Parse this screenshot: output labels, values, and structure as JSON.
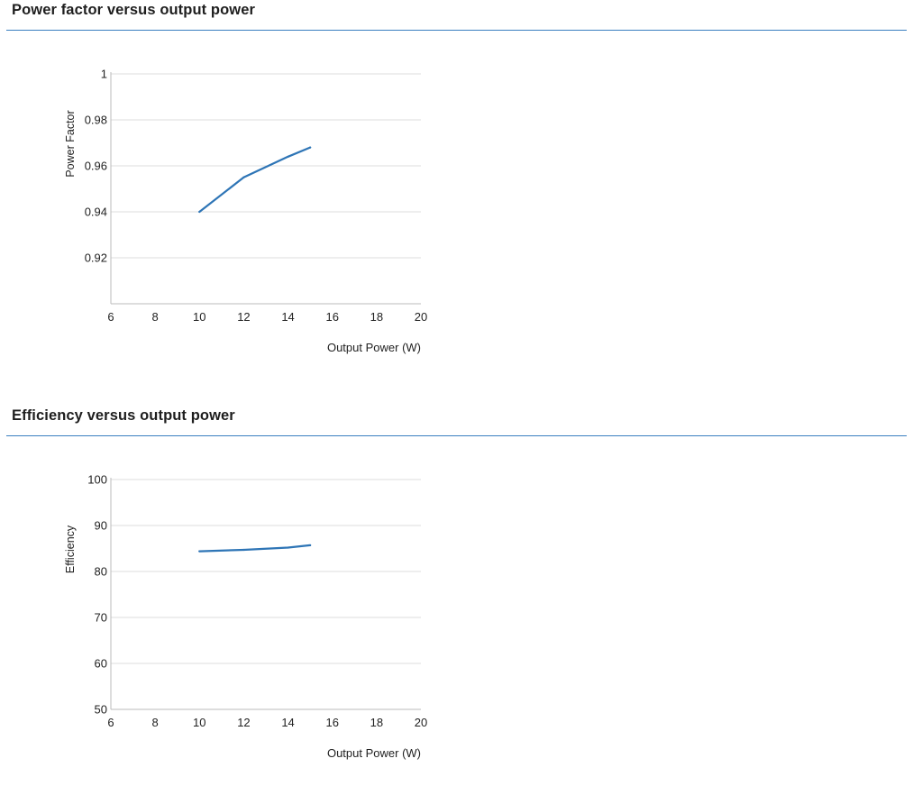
{
  "colors": {
    "accent_rule": "#3a7fc0",
    "series_line": "#2e75b6",
    "gridline": "#dddddd",
    "axis": "#bbbbbb"
  },
  "sections": [
    {
      "title": "Power factor versus output power"
    },
    {
      "title": "Efficiency versus output power"
    }
  ],
  "chart_data": [
    {
      "type": "line",
      "xlabel": "Output Power (W)",
      "ylabel": "Power Factor",
      "xlim": [
        6,
        20
      ],
      "ylim": [
        0.9,
        1
      ],
      "xticks": [
        6,
        8,
        10,
        12,
        14,
        16,
        18,
        20
      ],
      "yticks": [
        0.92,
        0.94,
        0.96,
        0.98,
        1
      ],
      "ytick_labels": [
        "0.92",
        "0.94",
        "0.96",
        "0.98",
        "1"
      ],
      "grid": true,
      "series": [
        {
          "x": [
            10,
            12,
            14,
            15
          ],
          "y": [
            0.94,
            0.955,
            0.964,
            0.968
          ]
        }
      ]
    },
    {
      "type": "line",
      "xlabel": "Output Power (W)",
      "ylabel": "Efficiency",
      "xlim": [
        6,
        20
      ],
      "ylim": [
        50,
        100
      ],
      "xticks": [
        6,
        8,
        10,
        12,
        14,
        16,
        18,
        20
      ],
      "yticks": [
        50,
        60,
        70,
        80,
        90,
        100
      ],
      "ytick_labels": [
        "50",
        "60",
        "70",
        "80",
        "90",
        "100"
      ],
      "grid": true,
      "series": [
        {
          "x": [
            10,
            12,
            14,
            15
          ],
          "y": [
            84.4,
            84.7,
            85.2,
            85.7
          ]
        }
      ]
    }
  ]
}
